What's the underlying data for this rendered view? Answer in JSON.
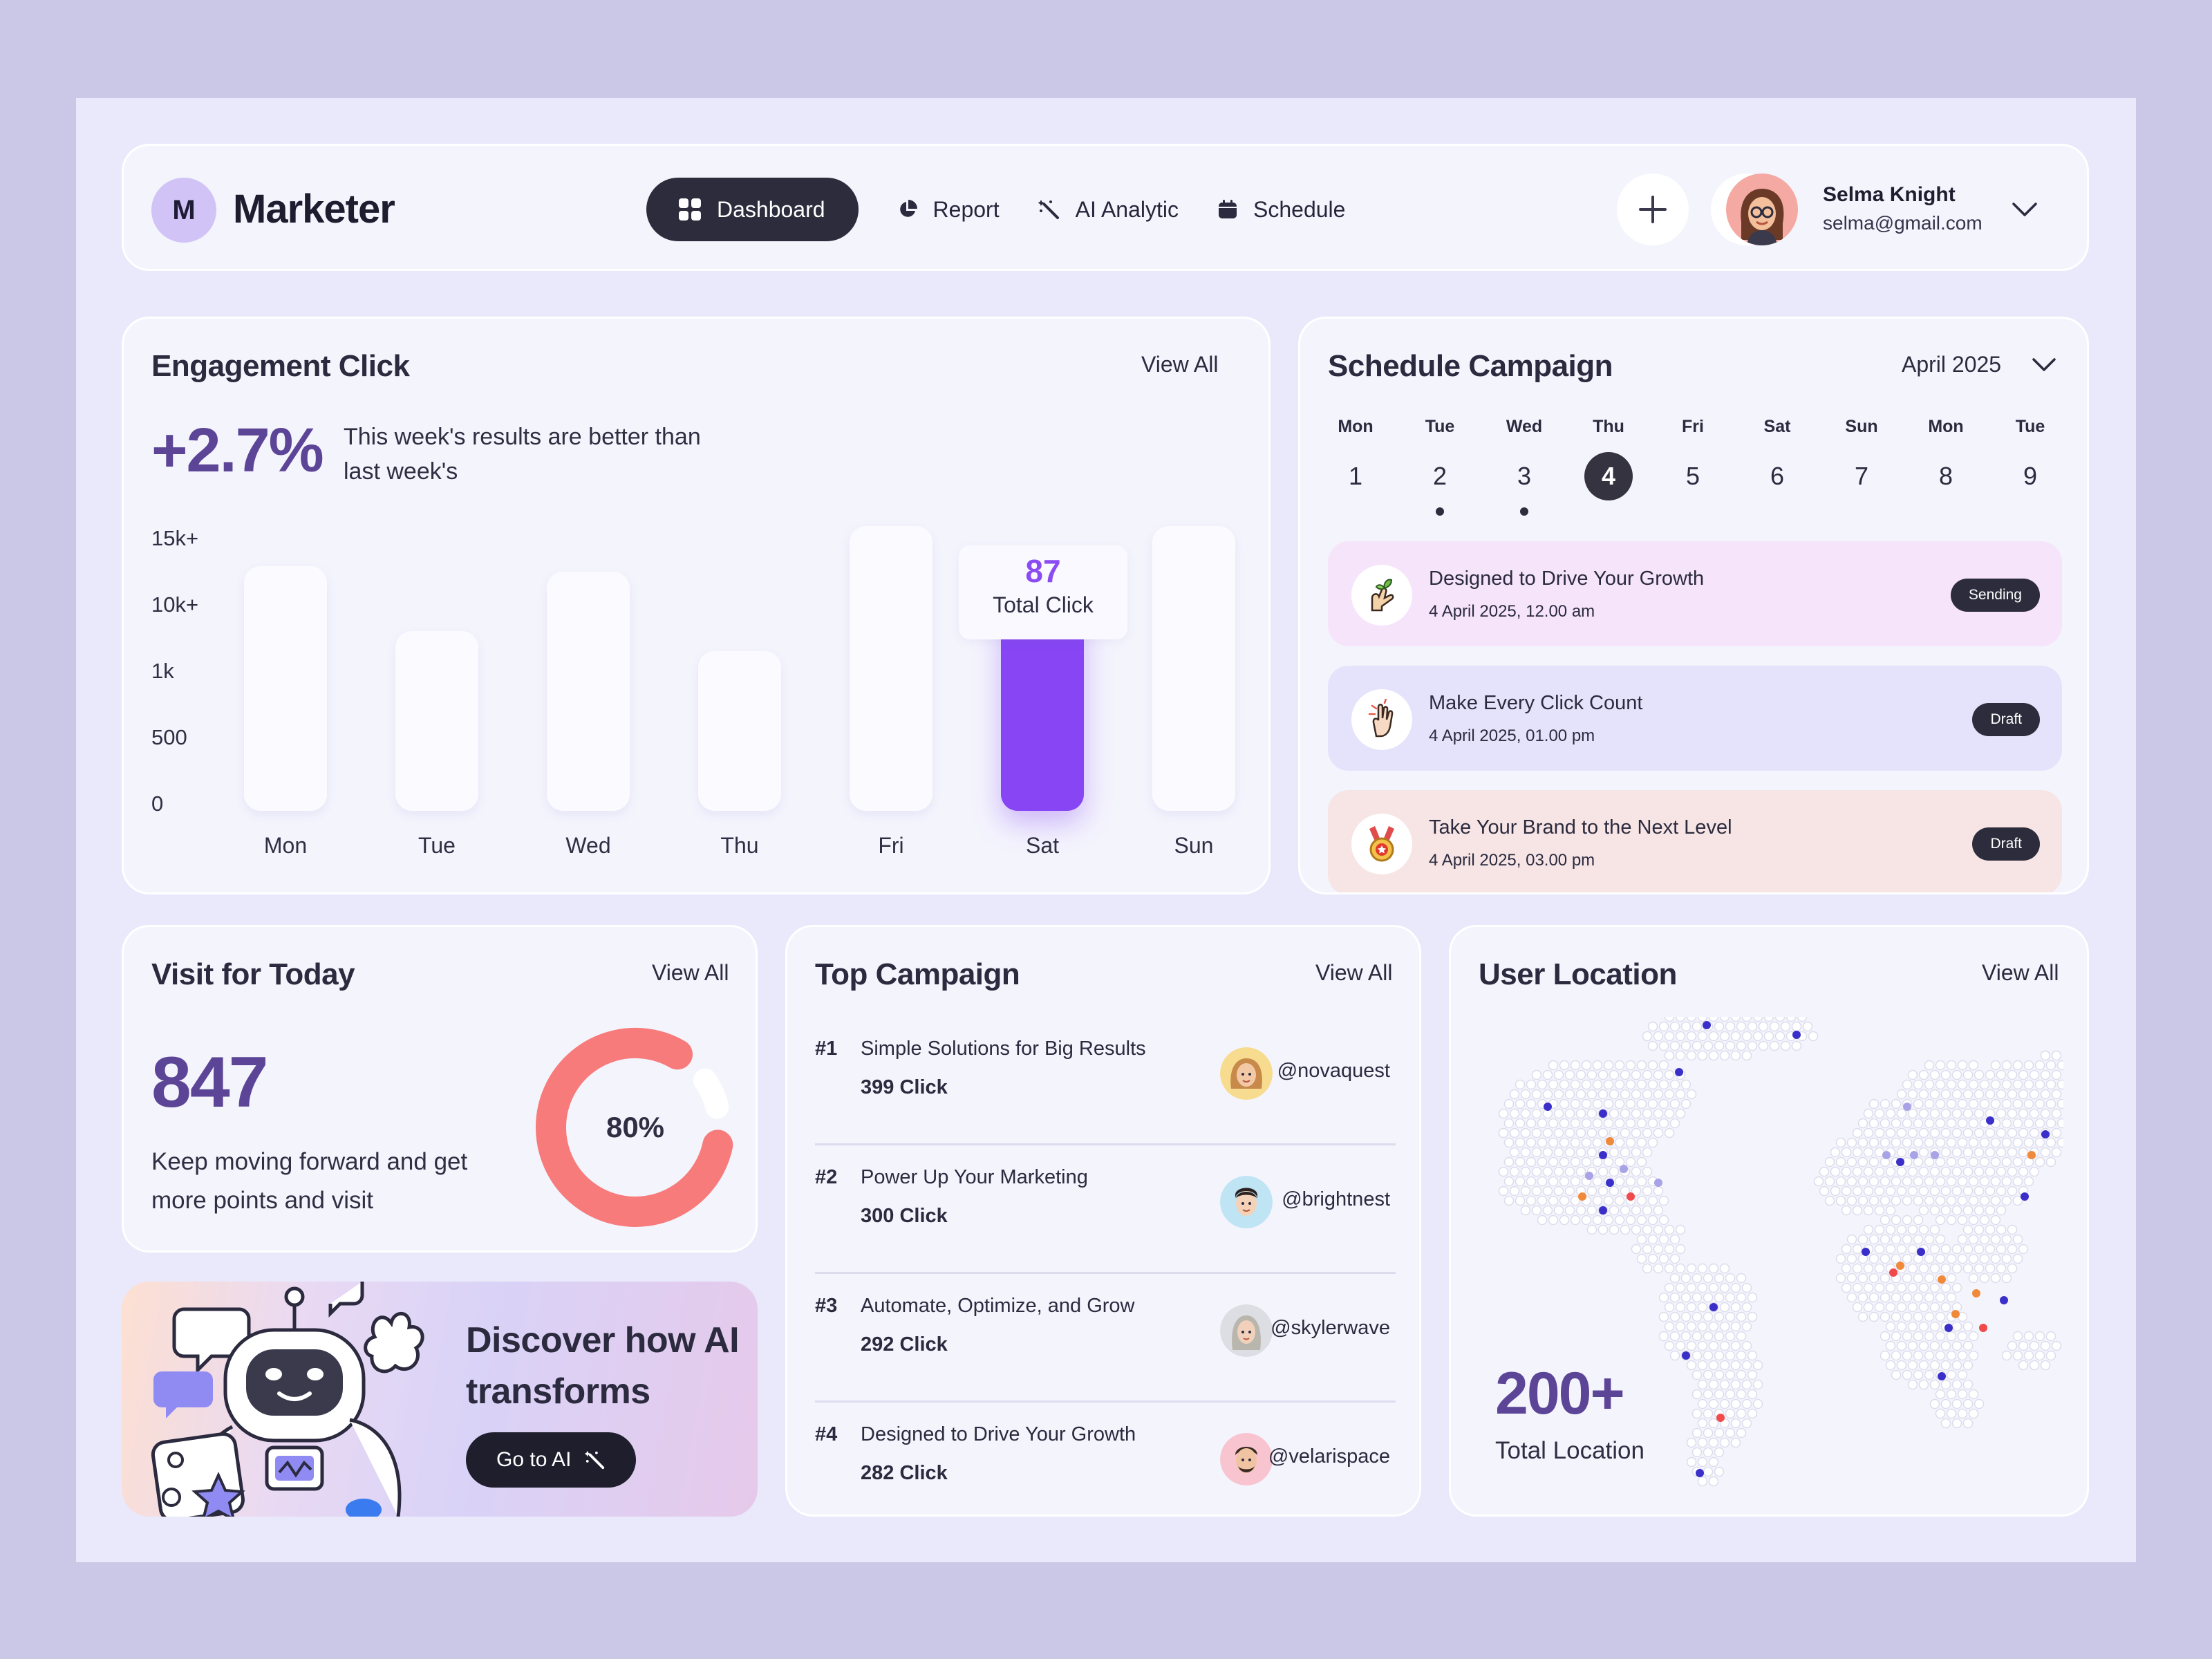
{
  "app": {
    "logo_letter": "M",
    "name": "Marketer"
  },
  "nav": [
    {
      "label": "Dashboard",
      "icon": "grid-icon",
      "active": true
    },
    {
      "label": "Report",
      "icon": "pie-chart-icon",
      "active": false
    },
    {
      "label": "AI Analytic",
      "icon": "magic-wand-icon",
      "active": false
    },
    {
      "label": "Schedule",
      "icon": "calendar-icon",
      "active": false
    }
  ],
  "user": {
    "name": "Selma Knight",
    "email": "selma@gmail.com"
  },
  "engagement": {
    "title": "Engagement Click",
    "view_all": "View All",
    "change": "+2.7%",
    "note": "This week's results are better than last week's",
    "tooltip_value": "87",
    "tooltip_label": "Total Click"
  },
  "chart_data": {
    "type": "bar",
    "categories": [
      "Mon",
      "Tue",
      "Wed",
      "Thu",
      "Fri",
      "Sat",
      "Sun"
    ],
    "y_tick_labels": [
      "15k+",
      "10k+",
      "1k",
      "500",
      "0"
    ],
    "values": [
      0.86,
      0.63,
      0.84,
      0.56,
      1.0,
      0.83,
      1.0
    ],
    "value_scale": "relative bar height, 0 to 1",
    "highlight": "Sat",
    "colors": {
      "bar": "#fbfbff",
      "highlight": "#8745f3"
    },
    "grid": false,
    "legend": "none"
  },
  "schedule": {
    "title": "Schedule Campaign",
    "month": "April 2025",
    "days": [
      {
        "name": "Mon",
        "date": "1",
        "selected": false,
        "dot": false
      },
      {
        "name": "Tue",
        "date": "2",
        "selected": false,
        "dot": true
      },
      {
        "name": "Wed",
        "date": "3",
        "selected": false,
        "dot": true
      },
      {
        "name": "Thu",
        "date": "4",
        "selected": true,
        "dot": false
      },
      {
        "name": "Fri",
        "date": "5",
        "selected": false,
        "dot": false
      },
      {
        "name": "Sat",
        "date": "6",
        "selected": false,
        "dot": false
      },
      {
        "name": "Sun",
        "date": "7",
        "selected": false,
        "dot": false
      },
      {
        "name": "Mon",
        "date": "8",
        "selected": false,
        "dot": false
      },
      {
        "name": "Tue",
        "date": "9",
        "selected": false,
        "dot": false
      }
    ],
    "campaigns": [
      {
        "title": "Designed to Drive Your Growth",
        "date": "4 April 2025, 12.00 am",
        "status": "Sending",
        "bg": "#f6e4fb",
        "icon": "growth-hand-icon"
      },
      {
        "title": "Make Every Click Count",
        "date": "4 April 2025, 01.00 pm",
        "status": "Draft",
        "bg": "#e4e3fb",
        "icon": "hand-click-icon"
      },
      {
        "title": "Take Your Brand to the Next Level",
        "date": "4 April 2025, 03.00 pm",
        "status": "Draft",
        "bg": "#f7e5e5",
        "icon": "medal-icon"
      }
    ]
  },
  "visit": {
    "title": "Visit for Today",
    "view_all": "View All",
    "count": "847",
    "note": "Keep moving forward and get more points and visit",
    "percent_label": "80%",
    "percent": 80
  },
  "promo": {
    "title": "Discover how AI transforms",
    "button": "Go to AI"
  },
  "top_campaign": {
    "title": "Top Campaign",
    "view_all": "View All",
    "items": [
      {
        "rank": "#1",
        "name": "Simple Solutions for Big Results",
        "clicks": "399 Click",
        "handle": "@novaquest",
        "avatar_bg": "#f7dc8f"
      },
      {
        "rank": "#2",
        "name": "Power Up Your Marketing",
        "clicks": "300 Click",
        "handle": "@brightnest",
        "avatar_bg": "#bfe4f4"
      },
      {
        "rank": "#3",
        "name": "Automate, Optimize, and Grow",
        "clicks": "292 Click",
        "handle": "@skylerwave",
        "avatar_bg": "#dddde4"
      },
      {
        "rank": "#4",
        "name": "Designed to Drive Your Growth",
        "clicks": "282 Click",
        "handle": "@velarispace",
        "avatar_bg": "#f8c4cf"
      }
    ]
  },
  "location": {
    "title": "User Location",
    "view_all": "View All",
    "total": "200+",
    "total_label": "Total Location"
  }
}
